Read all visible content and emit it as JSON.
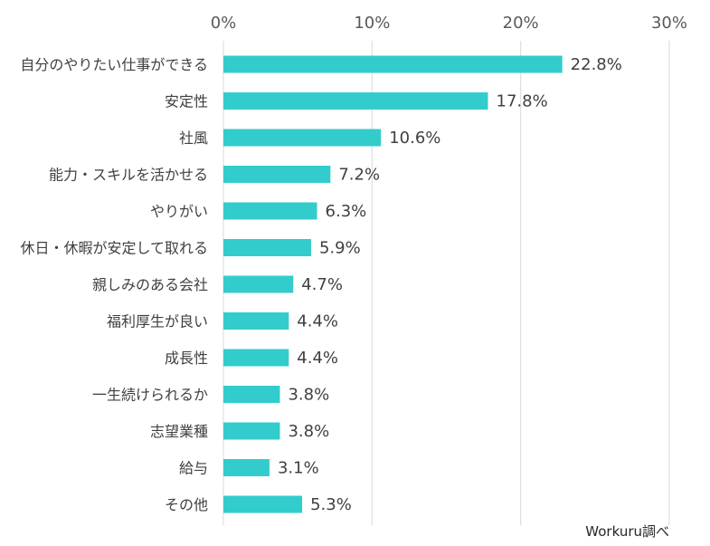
{
  "chart_data": {
    "type": "bar",
    "orientation": "horizontal",
    "categories": [
      "自分のやりたい仕事ができる",
      "安定性",
      "社風",
      "能力・スキルを活かせる",
      "やりがい",
      "休日・休暇が安定して取れる",
      "親しみのある会社",
      "福利厚生が良い",
      "成長性",
      "一生続けられるか",
      "志望業種",
      "給与",
      "その他"
    ],
    "values": [
      22.8,
      17.8,
      10.6,
      7.2,
      6.3,
      5.9,
      4.7,
      4.4,
      4.4,
      3.8,
      3.8,
      3.1,
      5.3
    ],
    "value_labels": [
      "22.8%",
      "17.8%",
      "10.6%",
      "7.2%",
      "6.3%",
      "5.9%",
      "4.7%",
      "4.4%",
      "4.4%",
      "3.8%",
      "3.8%",
      "3.1%",
      "5.3%"
    ],
    "xlim": [
      0,
      30
    ],
    "x_ticks": [
      0,
      10,
      20,
      30
    ],
    "x_tick_labels": [
      "0%",
      "10%",
      "20%",
      "30%"
    ],
    "x_axis_position": "top",
    "grid": true,
    "bar_color": "#33CCCC",
    "title": "",
    "xlabel": "",
    "ylabel": ""
  },
  "source_note": "Workuru調べ"
}
